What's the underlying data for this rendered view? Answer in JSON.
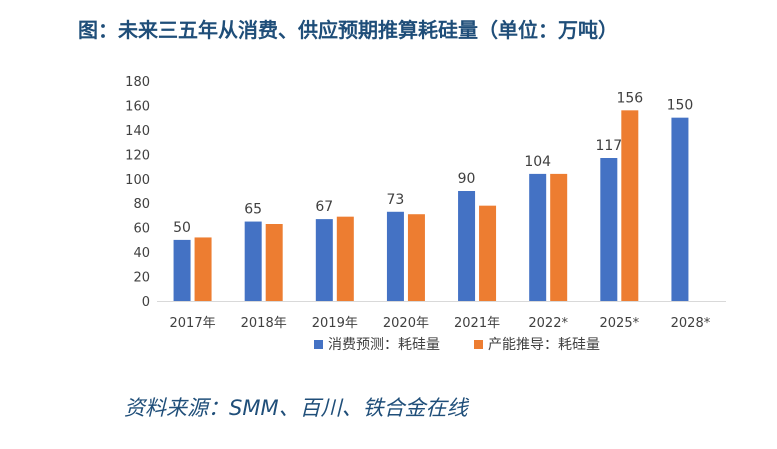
{
  "title": "图：未来三五年从消费、供应预期推算耗硅量（单位：万吨）",
  "source": "资料来源：SMM、百川、铁合金在线",
  "chart_data": {
    "type": "bar",
    "categories": [
      "2017年",
      "2018年",
      "2019年",
      "2020年",
      "2021年",
      "2022*",
      "2025*",
      "2028*"
    ],
    "series": [
      {
        "name": "消费预测：耗硅量",
        "color": "#4472c4",
        "values": [
          50,
          65,
          67,
          73,
          90,
          104,
          117,
          150
        ],
        "labels": [
          "50",
          "65",
          "67",
          "73",
          "90",
          "104",
          "117",
          "150"
        ]
      },
      {
        "name": "产能推导：耗硅量",
        "color": "#ed7d31",
        "values": [
          52,
          63,
          69,
          71,
          78,
          104,
          156,
          null
        ],
        "labels": [
          "",
          "",
          "",
          "",
          "",
          "",
          "156",
          ""
        ]
      }
    ],
    "ylim": [
      0,
      180
    ],
    "yticks": [
      0,
      20,
      40,
      60,
      80,
      100,
      120,
      140,
      160,
      180
    ],
    "grid": false,
    "legend": "bottom"
  }
}
